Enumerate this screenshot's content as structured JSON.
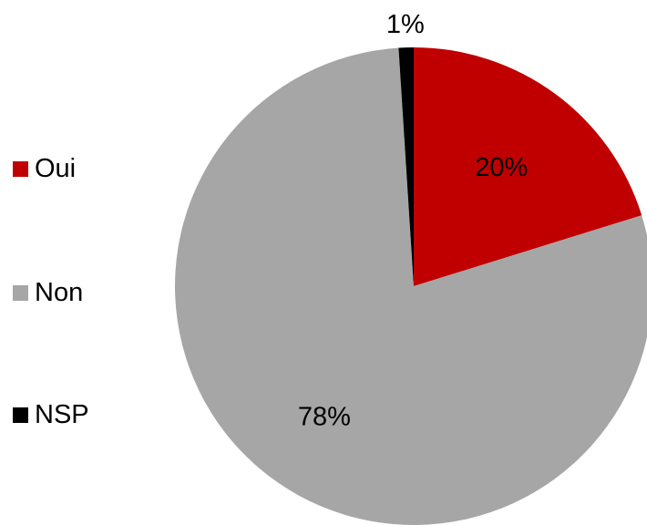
{
  "chart_data": {
    "type": "pie",
    "categories": [
      "Oui",
      "Non",
      "NSP"
    ],
    "values": [
      20,
      78,
      1
    ],
    "value_labels": [
      "20%",
      "78%",
      "1%"
    ],
    "colors": [
      "#c00000",
      "#a6a6a6",
      "#000000"
    ],
    "start_angle_deg": 0,
    "direction": "clockwise",
    "legend_position": "left",
    "title": ""
  },
  "legend": {
    "items": [
      {
        "label": "Oui",
        "color": "#c00000"
      },
      {
        "label": "Non",
        "color": "#a6a6a6"
      },
      {
        "label": "NSP",
        "color": "#000000"
      }
    ]
  }
}
